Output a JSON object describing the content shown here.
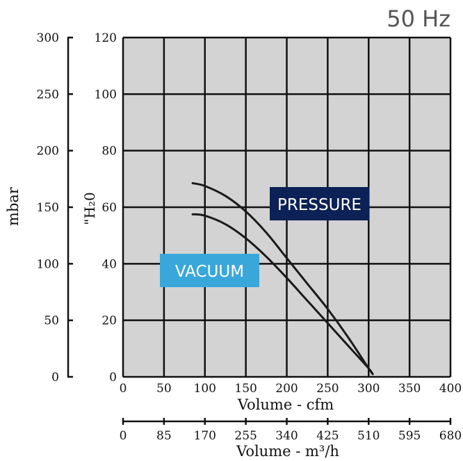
{
  "frequency_label": "50 Hz",
  "chart_data": {
    "type": "line",
    "xlabel": "Volume - cfm",
    "x2label": "Volume - m³/h",
    "y_inner_label": "\"H₂0",
    "y_outer_label": "mbar",
    "xlim": [
      0,
      400
    ],
    "ylim": [
      0,
      120
    ],
    "x_ticks": [
      0,
      50,
      100,
      150,
      200,
      250,
      300,
      350,
      400
    ],
    "y_ticks": [
      0,
      20,
      40,
      60,
      80,
      100,
      120
    ],
    "x2_ticks": [
      0,
      85,
      170,
      255,
      340,
      425,
      510,
      595,
      680
    ],
    "y2_ticks": [
      0,
      50,
      100,
      150,
      200,
      250,
      300
    ],
    "grid": true,
    "series": [
      {
        "name": "PRESSURE",
        "color": "#1a1a1a",
        "x": [
          85,
          100,
          125,
          150,
          175,
          200,
          225,
          250,
          275,
          300,
          305
        ],
        "y": [
          68.5,
          67.5,
          64,
          58.5,
          51,
          42,
          33,
          24,
          14,
          3,
          1
        ]
      },
      {
        "name": "VACUUM",
        "color": "#1a1a1a",
        "x": [
          85,
          100,
          125,
          150,
          175,
          200,
          225,
          250,
          275,
          300,
          305
        ],
        "y": [
          57.5,
          57,
          54,
          49,
          42.5,
          35,
          27,
          19,
          11,
          3,
          1
        ]
      }
    ],
    "labels": {
      "pressure": "PRESSURE",
      "vacuum": "VACUUM"
    },
    "colors": {
      "plot_background": "#d3d3d3",
      "grid": "#111111",
      "pressure_label_bg": "#0c2155",
      "vacuum_label_bg": "#3aa7db",
      "label_text": "#ffffff"
    }
  }
}
